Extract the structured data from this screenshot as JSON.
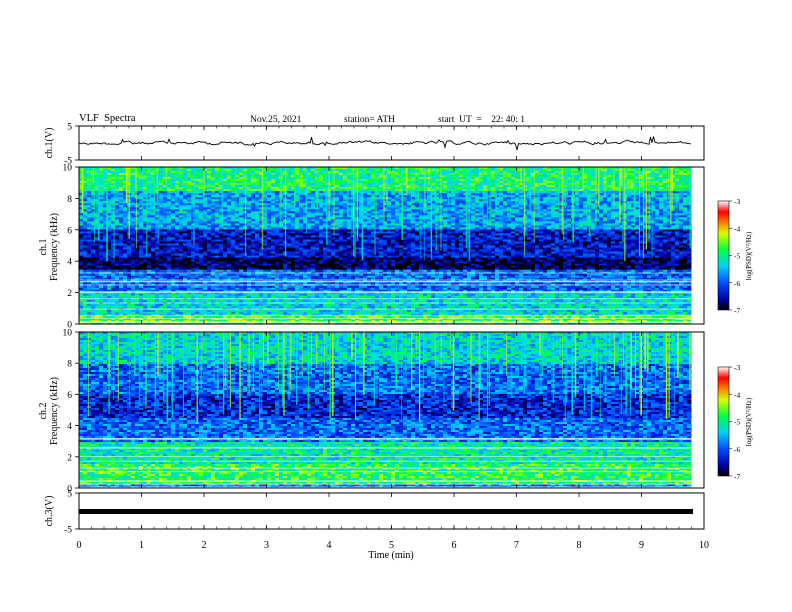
{
  "header": {
    "title": "VLF  Spectra",
    "date": "Nov.25, 2021",
    "station": "station= ATH",
    "start": "start  UT  =    22: 40: 1"
  },
  "chart_data": [
    {
      "type": "line",
      "panel": "ch1",
      "ylabel": "ch.1(V)",
      "ylim": [
        -5,
        5
      ],
      "yticks": [
        "5",
        "-5"
      ],
      "description_values": "noisy waveform near 0 V",
      "x_range_min": [
        0,
        9.8
      ]
    },
    {
      "type": "heatmap",
      "panel": "ch1-spectrogram",
      "ylabel": "ch.1\nFrequency  (kHz)",
      "ylim": [
        0,
        10
      ],
      "yticks": [
        "0",
        "2",
        "4",
        "6",
        "8",
        "10"
      ],
      "xlim": [
        0,
        9.8
      ],
      "colorbar": {
        "label": "log(PSD)(V²/Hz)",
        "ticks": [
          "-3",
          "-4",
          "-5",
          "-6",
          "-7"
        ],
        "range": [
          -7,
          -3
        ]
      },
      "bands_khz": [
        {
          "from": 8.5,
          "to": 10,
          "level": -4.9
        },
        {
          "from": 6.0,
          "to": 8.5,
          "level": -5.6
        },
        {
          "from": 4.2,
          "to": 6.0,
          "level": -6.4
        },
        {
          "from": 3.5,
          "to": 4.2,
          "level": -6.8
        },
        {
          "from": 2.0,
          "to": 3.5,
          "level": -5.9
        },
        {
          "from": 0.5,
          "to": 2.0,
          "level": -5.3
        },
        {
          "from": 0,
          "to": 0.5,
          "level": -4.6
        }
      ]
    },
    {
      "type": "heatmap",
      "panel": "ch2-spectrogram",
      "ylabel": "ch.2\nFrequency  (kHz)",
      "ylim": [
        0,
        10
      ],
      "yticks": [
        "0",
        "2",
        "4",
        "6",
        "8",
        "10"
      ],
      "xlim": [
        0,
        9.8
      ],
      "colorbar": {
        "label": "log(PSD)(V²/Hz)",
        "ticks": [
          "-3",
          "-4",
          "-5",
          "-6",
          "-7"
        ],
        "range": [
          -7,
          -3
        ]
      },
      "bands_khz": [
        {
          "from": 8.0,
          "to": 10,
          "level": -5.3
        },
        {
          "from": 6.0,
          "to": 8.0,
          "level": -5.9
        },
        {
          "from": 4.5,
          "to": 6.0,
          "level": -6.3
        },
        {
          "from": 3.0,
          "to": 4.5,
          "level": -5.9
        },
        {
          "from": 1.5,
          "to": 3.0,
          "level": -5.1
        },
        {
          "from": 0.3,
          "to": 1.5,
          "level": -4.8
        },
        {
          "from": 0,
          "to": 0.3,
          "level": -5.8
        }
      ]
    },
    {
      "type": "line",
      "panel": "ch3",
      "ylabel": "ch.3(V)",
      "ylim": [
        -5,
        5
      ],
      "yticks": [
        "5",
        "-5"
      ],
      "xlim": [
        0,
        10
      ],
      "flat_value": 0
    }
  ],
  "xaxis": {
    "label": "Time  (min)",
    "xlim": [
      0,
      10
    ],
    "ticks": [
      "0",
      "1",
      "2",
      "3",
      "4",
      "5",
      "6",
      "7",
      "8",
      "9",
      "10"
    ]
  }
}
